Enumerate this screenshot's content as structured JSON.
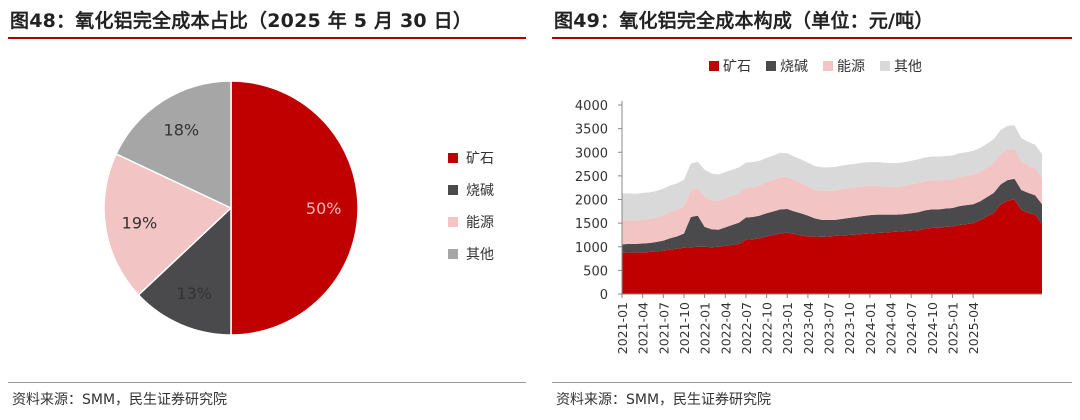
{
  "left_panel": {
    "title": "图48：氧化铝完全成本占比（2025 年 5 月 30 日）",
    "source": "资料来源：SMM，民生证券研究院"
  },
  "right_panel": {
    "title": "图49：氧化铝完全成本构成（单位：元/吨）",
    "source": "资料来源：SMM，民生证券研究院"
  },
  "colors": {
    "ore": "#c00000",
    "caustic": "#4a4a4c",
    "energy": "#f2c4c4",
    "other": "#d9d9d9",
    "accent": "#b00000"
  },
  "chart_data": [
    {
      "type": "pie",
      "title": "",
      "legend_placement": "right",
      "slices": [
        {
          "name": "矿石",
          "value": 50,
          "label": "50%",
          "color": "#c00000"
        },
        {
          "name": "烧碱",
          "value": 13,
          "label": "13%",
          "color": "#4a4a4c"
        },
        {
          "name": "能源",
          "value": 19,
          "label": "19%",
          "color": "#f2c4c4"
        },
        {
          "name": "其他",
          "value": 18,
          "label": "18%",
          "color": "#a6a6a6"
        }
      ]
    },
    {
      "type": "area",
      "stacked": true,
      "title": "",
      "ylim": [
        0,
        4000
      ],
      "yticks": [
        0,
        500,
        1000,
        1500,
        2000,
        2500,
        3000,
        3500,
        4000
      ],
      "grid": false,
      "legend_placement": "top",
      "x_start": "2021-01",
      "x_tick_labels": [
        "2021-01",
        "2021-04",
        "2021-07",
        "2021-10",
        "2022-01",
        "2022-04",
        "2022-07",
        "2022-10",
        "2023-01",
        "2023-04",
        "2023-07",
        "2023-10",
        "2024-01",
        "2024-04",
        "2024-07",
        "2024-10",
        "2025-01",
        "2025-04"
      ],
      "x_tick_values": [
        0,
        3,
        6,
        9,
        12,
        15,
        18,
        21,
        24,
        27,
        30,
        33,
        36,
        39,
        42,
        45,
        48,
        51
      ],
      "series": [
        {
          "name": "矿石",
          "color": "#c00000",
          "values": [
            870,
            880,
            880,
            880,
            890,
            900,
            920,
            940,
            960,
            980,
            990,
            1000,
            1000,
            990,
            1000,
            1020,
            1040,
            1060,
            1150,
            1160,
            1180,
            1220,
            1250,
            1280,
            1300,
            1270,
            1240,
            1220,
            1220,
            1210,
            1220,
            1230,
            1240,
            1250,
            1260,
            1270,
            1280,
            1290,
            1300,
            1310,
            1320,
            1330,
            1340,
            1350,
            1380,
            1400,
            1400,
            1420,
            1430,
            1460,
            1480,
            1500,
            1560,
            1640,
            1720,
            1900,
            1980,
            2000,
            1780,
            1720,
            1680,
            1480
          ]
        },
        {
          "name": "烧碱",
          "color": "#4a4a4c",
          "values": [
            180,
            180,
            180,
            190,
            190,
            200,
            210,
            240,
            260,
            300,
            640,
            660,
            420,
            380,
            360,
            390,
            420,
            450,
            470,
            470,
            480,
            490,
            500,
            510,
            500,
            480,
            470,
            440,
            380,
            360,
            350,
            340,
            350,
            360,
            370,
            380,
            390,
            390,
            380,
            370,
            360,
            360,
            370,
            380,
            390,
            390,
            390,
            390,
            390,
            400,
            400,
            400,
            400,
            410,
            420,
            420,
            430,
            440,
            420,
            420,
            410,
            420
          ]
        },
        {
          "name": "能源",
          "color": "#f2c4c4",
          "values": [
            500,
            500,
            500,
            510,
            510,
            520,
            540,
            560,
            560,
            580,
            570,
            580,
            650,
            620,
            610,
            620,
            620,
            620,
            630,
            630,
            640,
            660,
            670,
            690,
            680,
            660,
            640,
            620,
            610,
            610,
            610,
            620,
            630,
            630,
            630,
            630,
            620,
            610,
            600,
            590,
            590,
            600,
            610,
            620,
            620,
            620,
            620,
            610,
            610,
            620,
            620,
            630,
            630,
            630,
            640,
            650,
            650,
            630,
            600,
            580,
            570,
            560
          ]
        },
        {
          "name": "其他",
          "color": "#d9d9d9",
          "values": [
            580,
            570,
            560,
            560,
            560,
            560,
            560,
            560,
            560,
            560,
            560,
            560,
            560,
            560,
            560,
            550,
            550,
            550,
            530,
            530,
            520,
            510,
            510,
            510,
            500,
            500,
            500,
            500,
            500,
            500,
            500,
            500,
            500,
            500,
            500,
            500,
            500,
            500,
            500,
            500,
            500,
            500,
            500,
            500,
            500,
            500,
            500,
            500,
            500,
            500,
            500,
            500,
            500,
            500,
            500,
            500,
            500,
            500,
            500,
            500,
            500,
            500
          ]
        }
      ]
    }
  ]
}
